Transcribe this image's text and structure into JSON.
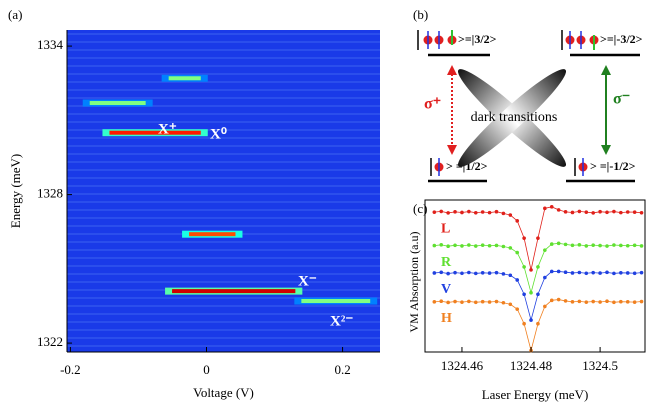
{
  "chart_data": [
    {
      "type": "heatmap",
      "label": "(a)",
      "xlabel": "Voltage (V)",
      "ylabel": "Energy (meV)",
      "xlim": [
        -0.205,
        0.255
      ],
      "ylim": [
        1321.64,
        1334.65
      ],
      "xticks": [
        -0.2,
        0,
        0.2
      ],
      "yticks": [
        1322,
        1328,
        1334
      ],
      "background": "#1a3ae8",
      "colormap": "jet",
      "streaks": [
        {
          "x": [
            -0.06,
            -0.004
          ],
          "y": 1332.7,
          "level": 0.5
        },
        {
          "x": [
            -0.176,
            -0.085
          ],
          "y": 1331.7,
          "level": 0.5
        },
        {
          "x": [
            -0.147,
            -0.004
          ],
          "y": 1330.5,
          "level": 0.85
        },
        {
          "x": [
            -0.03,
            0.047
          ],
          "y": 1326.4,
          "level": 0.8
        },
        {
          "x": [
            -0.055,
            0.135
          ],
          "y": 1324.1,
          "level": 0.92
        },
        {
          "x": [
            0.135,
            0.245
          ],
          "y": 1323.7,
          "level": 0.5
        }
      ],
      "annotations": [
        "X⁺",
        "X⁰",
        "X⁻",
        "X²⁻"
      ]
    },
    {
      "type": "line",
      "label": "(c)",
      "xlabel": "Laser Energy (meV)",
      "ylabel": "VM Absorption (a.u)",
      "xlim": [
        1324.4493,
        1324.513
      ],
      "ylim": [
        0,
        10
      ],
      "xticks": [
        1324.46,
        1324.48,
        1324.5
      ],
      "x": [
        1324.452,
        1324.454,
        1324.456,
        1324.458,
        1324.46,
        1324.462,
        1324.464,
        1324.466,
        1324.468,
        1324.47,
        1324.472,
        1324.474,
        1324.476,
        1324.478,
        1324.48,
        1324.482,
        1324.484,
        1324.486,
        1324.488,
        1324.49,
        1324.492,
        1324.494,
        1324.496,
        1324.498,
        1324.5,
        1324.502,
        1324.504,
        1324.506,
        1324.508,
        1324.51,
        1324.512
      ],
      "series": [
        {
          "name": "L",
          "color": "#e0201a",
          "values": [
            9.2,
            9.25,
            9.15,
            9.22,
            9.18,
            9.24,
            9.16,
            9.21,
            9.17,
            9.23,
            9.12,
            9.01,
            8.63,
            7.49,
            5.4,
            7.49,
            9.45,
            9.55,
            9.35,
            9.22,
            9.18,
            9.25,
            9.2,
            9.15,
            9.23,
            9.19,
            9.24,
            9.17,
            9.21,
            9.2,
            9.16
          ]
        },
        {
          "name": "R",
          "color": "#5fe030",
          "values": [
            7.0,
            7.05,
            6.96,
            7.02,
            6.98,
            7.04,
            6.97,
            7.03,
            6.99,
            7.01,
            6.94,
            6.85,
            6.54,
            5.6,
            3.9,
            5.6,
            6.7,
            7.1,
            7.15,
            7.08,
            7.02,
            7.05,
            6.98,
            7.03,
            7.0,
            6.97,
            7.04,
            7.01,
            6.99,
            7.02,
            6.98
          ]
        },
        {
          "name": "V",
          "color": "#2040e0",
          "values": [
            5.2,
            5.24,
            5.16,
            5.22,
            5.18,
            5.23,
            5.17,
            5.21,
            5.19,
            5.22,
            5.14,
            5.05,
            4.74,
            3.8,
            2.1,
            3.8,
            4.9,
            5.3,
            5.3,
            5.25,
            5.2,
            5.23,
            5.18,
            5.22,
            5.19,
            5.24,
            5.17,
            5.21,
            5.2,
            5.18,
            5.22
          ]
        },
        {
          "name": "H",
          "color": "#f08020",
          "values": [
            3.3,
            3.34,
            3.26,
            3.32,
            3.28,
            3.33,
            3.27,
            3.31,
            3.29,
            3.32,
            3.24,
            3.14,
            2.82,
            1.86,
            0.1,
            1.86,
            3.0,
            3.4,
            3.45,
            3.36,
            3.3,
            3.33,
            3.28,
            3.32,
            3.29,
            3.34,
            3.27,
            3.31,
            3.3,
            3.28,
            3.32
          ]
        }
      ]
    }
  ],
  "diagram": {
    "label": "(b)",
    "states": [
      ">=|3/2>",
      ">=|-3/2>",
      "> =|1/2>",
      "> =|-1/2>"
    ],
    "center_text": "dark transitions",
    "sigma_plus": "σ⁺",
    "sigma_minus": "σ⁻"
  }
}
